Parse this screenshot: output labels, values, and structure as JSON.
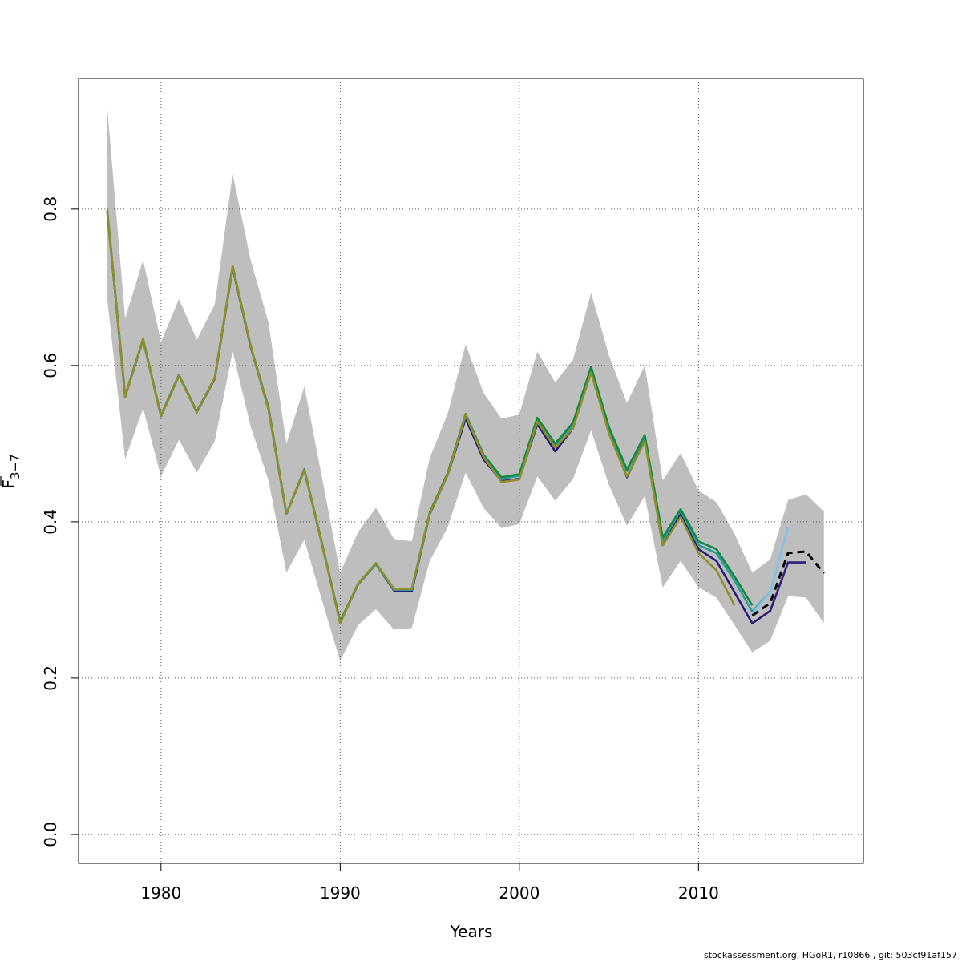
{
  "chart_data": {
    "type": "line",
    "xlabel": "Years",
    "ylabel": "F",
    "ylabel_sub": "3−7",
    "xlim": [
      1975.4,
      2019.2
    ],
    "ylim": [
      -0.037,
      0.967
    ],
    "x_ticks": [
      1980,
      1990,
      2000,
      2010
    ],
    "x_tick_labels": [
      "1980",
      "1990",
      "2000",
      "2010"
    ],
    "y_ticks": [
      0.0,
      0.2,
      0.4,
      0.6,
      0.8
    ],
    "y_tick_labels": [
      "0.0",
      "0.2",
      "0.4",
      "0.6",
      "0.8"
    ],
    "grid": true,
    "band": {
      "color": "#bebebe",
      "x": [
        1977,
        1978,
        1979,
        1980,
        1981,
        1982,
        1983,
        1984,
        1985,
        1986,
        1987,
        1988,
        1989,
        1990,
        1991,
        1992,
        1993,
        1994,
        1995,
        1996,
        1997,
        1998,
        1999,
        2000,
        2001,
        2002,
        2003,
        2004,
        2005,
        2006,
        2007,
        2008,
        2009,
        2010,
        2011,
        2012,
        2013,
        2014,
        2015,
        2016,
        2017
      ],
      "upper": [
        0.93,
        0.66,
        0.735,
        0.63,
        0.685,
        0.633,
        0.678,
        0.845,
        0.735,
        0.655,
        0.5,
        0.573,
        0.455,
        0.335,
        0.387,
        0.418,
        0.378,
        0.375,
        0.482,
        0.538,
        0.627,
        0.565,
        0.532,
        0.537,
        0.618,
        0.578,
        0.608,
        0.693,
        0.613,
        0.552,
        0.6,
        0.453,
        0.488,
        0.44,
        0.425,
        0.385,
        0.335,
        0.352,
        0.428,
        0.435,
        0.413
      ],
      "lower": [
        0.685,
        0.48,
        0.545,
        0.458,
        0.505,
        0.463,
        0.503,
        0.618,
        0.522,
        0.453,
        0.335,
        0.377,
        0.298,
        0.222,
        0.268,
        0.288,
        0.262,
        0.264,
        0.35,
        0.393,
        0.463,
        0.418,
        0.392,
        0.397,
        0.458,
        0.427,
        0.455,
        0.517,
        0.447,
        0.395,
        0.433,
        0.316,
        0.35,
        0.316,
        0.303,
        0.268,
        0.233,
        0.248,
        0.305,
        0.303,
        0.27
      ]
    },
    "series": [
      {
        "color": "#2d1d78",
        "dashed": false,
        "x": [
          1977,
          1978,
          1979,
          1980,
          1981,
          1982,
          1983,
          1984,
          1985,
          1986,
          1987,
          1988,
          1989,
          1990,
          1991,
          1992,
          1993,
          1994,
          1995,
          1996,
          1997,
          1998,
          1999,
          2000,
          2001,
          2002,
          2003,
          2004,
          2005,
          2006,
          2007,
          2008,
          2009,
          2010,
          2011,
          2012,
          2013,
          2014,
          2015,
          2016
        ],
        "y": [
          0.797,
          0.56,
          0.633,
          0.535,
          0.587,
          0.54,
          0.583,
          0.725,
          0.624,
          0.544,
          0.41,
          0.466,
          0.37,
          0.271,
          0.32,
          0.346,
          0.312,
          0.311,
          0.41,
          0.46,
          0.532,
          0.48,
          0.452,
          0.455,
          0.525,
          0.49,
          0.52,
          0.593,
          0.517,
          0.457,
          0.505,
          0.37,
          0.41,
          0.365,
          0.35,
          0.31,
          0.27,
          0.286,
          0.348,
          0.348
        ]
      },
      {
        "color": "#2a9b9b",
        "dashed": false,
        "x": [
          1977,
          1978,
          1979,
          1980,
          1981,
          1982,
          1983,
          1984,
          1985,
          1986,
          1987,
          1988,
          1989,
          1990,
          1991,
          1992,
          1993,
          1994,
          1995,
          1996,
          1997,
          1998,
          1999,
          2000,
          2001,
          2002,
          2003,
          2004,
          2005,
          2006,
          2007,
          2008,
          2009,
          2010,
          2011,
          2012,
          2013,
          2014
        ],
        "y": [
          0.798,
          0.561,
          0.633,
          0.535,
          0.587,
          0.541,
          0.584,
          0.726,
          0.625,
          0.545,
          0.41,
          0.466,
          0.37,
          0.271,
          0.32,
          0.346,
          0.313,
          0.313,
          0.411,
          0.461,
          0.536,
          0.484,
          0.455,
          0.459,
          0.532,
          0.497,
          0.524,
          0.597,
          0.519,
          0.465,
          0.509,
          0.376,
          0.414,
          0.37,
          0.36,
          0.325,
          0.285,
          0.31
        ]
      },
      {
        "color": "#7ec0ee",
        "dashed": false,
        "x": [
          2013,
          2014,
          2015
        ],
        "y": [
          0.283,
          0.31,
          0.393
        ]
      },
      {
        "color": "#138a3f",
        "dashed": false,
        "x": [
          1977,
          1978,
          1979,
          1980,
          1981,
          1982,
          1983,
          1984,
          1985,
          1986,
          1987,
          1988,
          1989,
          1990,
          1991,
          1992,
          1993,
          1994,
          1995,
          1996,
          1997,
          1998,
          1999,
          2000,
          2001,
          2002,
          2003,
          2004,
          2005,
          2006,
          2007,
          2008,
          2009,
          2010,
          2011,
          2012,
          2013
        ],
        "y": [
          0.798,
          0.561,
          0.634,
          0.536,
          0.588,
          0.541,
          0.584,
          0.727,
          0.625,
          0.546,
          0.41,
          0.467,
          0.371,
          0.272,
          0.321,
          0.347,
          0.314,
          0.314,
          0.412,
          0.462,
          0.538,
          0.486,
          0.457,
          0.461,
          0.533,
          0.5,
          0.527,
          0.598,
          0.521,
          0.467,
          0.511,
          0.38,
          0.416,
          0.375,
          0.365,
          0.33,
          0.293
        ]
      },
      {
        "color": "#8f8f2a",
        "dashed": false,
        "x": [
          1977,
          1978,
          1979,
          1980,
          1981,
          1982,
          1983,
          1984,
          1985,
          1986,
          1987,
          1988,
          1989,
          1990,
          1991,
          1992,
          1993,
          1994,
          1995,
          1996,
          1997,
          1998,
          1999,
          2000,
          2001,
          2002,
          2003,
          2004,
          2005,
          2006,
          2007,
          2008,
          2009,
          2010,
          2011,
          2012
        ],
        "y": [
          0.799,
          0.56,
          0.634,
          0.535,
          0.587,
          0.54,
          0.584,
          0.727,
          0.625,
          0.544,
          0.41,
          0.466,
          0.37,
          0.27,
          0.321,
          0.347,
          0.314,
          0.314,
          0.411,
          0.46,
          0.537,
          0.483,
          0.451,
          0.454,
          0.528,
          0.495,
          0.52,
          0.591,
          0.513,
          0.458,
          0.503,
          0.37,
          0.406,
          0.36,
          0.338,
          0.293
        ]
      },
      {
        "color": "#000000",
        "dashed": true,
        "x": [
          2013,
          2014,
          2015,
          2016,
          2017
        ],
        "y": [
          0.28,
          0.296,
          0.36,
          0.362,
          0.334
        ]
      }
    ]
  },
  "footer": {
    "text": "stockassessment.org, HGoR1, r10866 , git: 503cf91af157"
  }
}
